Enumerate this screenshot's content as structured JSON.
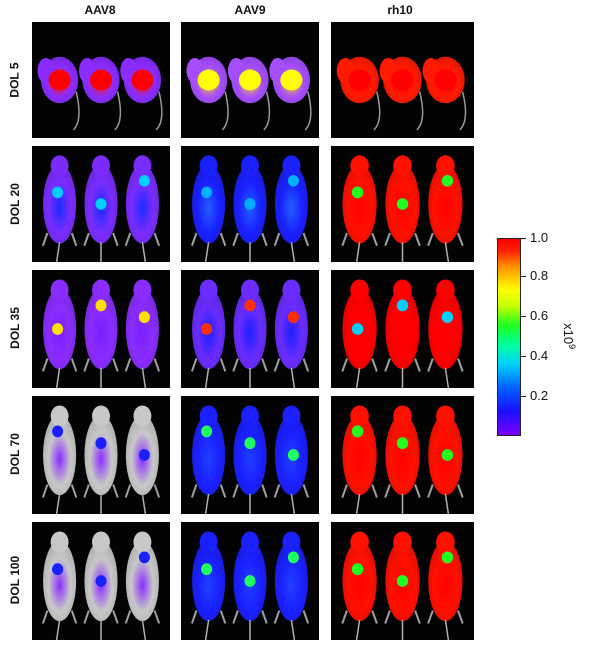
{
  "columns": [
    "AAV8",
    "AAV9",
    "rh10"
  ],
  "rows": [
    "DOL 5",
    "DOL 20",
    "DOL 35",
    "DOL 70",
    "DOL 100"
  ],
  "colorbar": {
    "ticks": [
      "1.0",
      "0.8",
      "0.6",
      "0.4",
      "0.2"
    ],
    "unit_base": "x10",
    "unit_exp": "9",
    "colors": [
      "#7a00ff",
      "#1a10ff",
      "#0060ff",
      "#00d0ff",
      "#00ffa0",
      "#20ff20",
      "#c8ff00",
      "#ffff00",
      "#ff9000",
      "#ff2000",
      "#ff0000"
    ]
  },
  "panels": [
    [
      {
        "body": "#8a2cff",
        "core": "#ff1a00",
        "hot": "#ff0000",
        "level": 0.9,
        "pose": "lateral"
      },
      {
        "body": "#a64dff",
        "core": "#ffd200",
        "hot": "#ffff00",
        "level": 0.75,
        "pose": "lateral"
      },
      {
        "body": "#ff1a00",
        "core": "#ff0000",
        "hot": "#ff0000",
        "level": 1.0,
        "pose": "lateral"
      }
    ],
    [
      {
        "body": "#7a2cff",
        "core": "#1a2cff",
        "hot": "#00d0ff",
        "level": 0.25,
        "pose": "ventral"
      },
      {
        "body": "#1a20ff",
        "core": "#2060ff",
        "hot": "#00b0ff",
        "level": 0.2,
        "pose": "ventral"
      },
      {
        "body": "#ff1000",
        "core": "#ff0000",
        "hot": "#20ff20",
        "level": 1.0,
        "pose": "ventral"
      }
    ],
    [
      {
        "body": "#8a2cff",
        "core": "#7a20ff",
        "hot": "#ffe000",
        "level": 0.2,
        "pose": "ventral"
      },
      {
        "body": "#6a2cff",
        "core": "#1a20ff",
        "hot": "#ff3000",
        "level": 0.25,
        "pose": "ventral"
      },
      {
        "body": "#ff0000",
        "core": "#ff0000",
        "hot": "#00d0ff",
        "level": 1.0,
        "pose": "ventral"
      }
    ],
    [
      {
        "body": "#c8c8c8",
        "core": "#8a2cff",
        "hot": "#1a20ff",
        "level": 0.1,
        "pose": "ventral"
      },
      {
        "body": "#1a20ff",
        "core": "#2040ff",
        "hot": "#20ff60",
        "level": 0.3,
        "pose": "ventral"
      },
      {
        "body": "#ff1000",
        "core": "#ff0000",
        "hot": "#20ff20",
        "level": 1.0,
        "pose": "ventral"
      }
    ],
    [
      {
        "body": "#c8c8c8",
        "core": "#8a2cff",
        "hot": "#1a20ff",
        "level": 0.1,
        "pose": "ventral"
      },
      {
        "body": "#1a20ff",
        "core": "#2040ff",
        "hot": "#20ff60",
        "level": 0.3,
        "pose": "ventral"
      },
      {
        "body": "#ff1000",
        "core": "#ff0000",
        "hot": "#20ff20",
        "level": 1.0,
        "pose": "ventral"
      }
    ]
  ]
}
